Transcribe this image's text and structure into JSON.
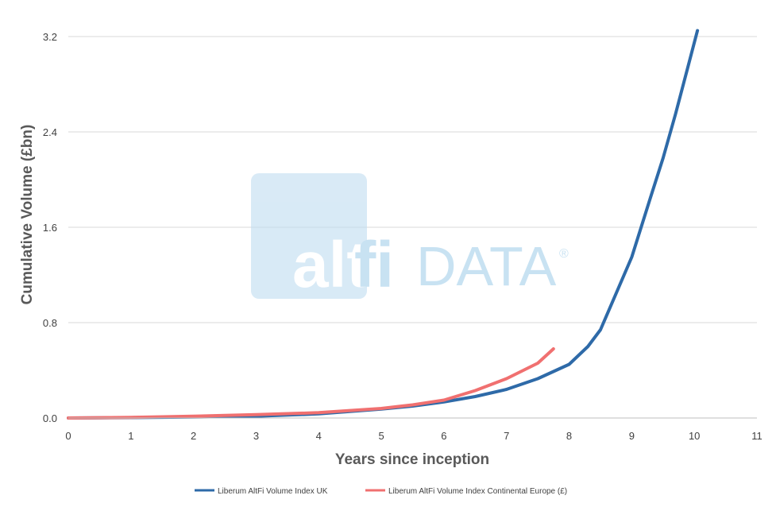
{
  "chart_data": {
    "type": "line",
    "title": "",
    "xlabel": "Years since inception",
    "ylabel": "Cumulative Volume (£bn)",
    "xlim": [
      0,
      11
    ],
    "ylim": [
      0,
      3.4
    ],
    "x_ticks": [
      "0",
      "1",
      "2",
      "3",
      "4",
      "5",
      "6",
      "7",
      "8",
      "9",
      "10",
      "11"
    ],
    "y_ticks": [
      "0.0",
      "0.8",
      "1.6",
      "2.4",
      "3.2"
    ],
    "grid": "horizontal",
    "legend_position": "bottom",
    "series": [
      {
        "name": "Liberum AltFi Volume Index UK",
        "color": "#2E6AA8",
        "points": [
          [
            0,
            0
          ],
          [
            1,
            0.003
          ],
          [
            2,
            0.008
          ],
          [
            3,
            0.015
          ],
          [
            4,
            0.035
          ],
          [
            5,
            0.075
          ],
          [
            5.5,
            0.1
          ],
          [
            6,
            0.135
          ],
          [
            6.5,
            0.18
          ],
          [
            7,
            0.24
          ],
          [
            7.5,
            0.33
          ],
          [
            8,
            0.45
          ],
          [
            8.3,
            0.6
          ],
          [
            8.5,
            0.74
          ],
          [
            9,
            1.35
          ],
          [
            9.3,
            1.85
          ],
          [
            9.5,
            2.18
          ],
          [
            9.7,
            2.55
          ],
          [
            9.9,
            2.95
          ],
          [
            10.05,
            3.25
          ]
        ]
      },
      {
        "name": "Liberum AltFi Volume Index Continental Europe (£)",
        "color": "#F07070",
        "points": [
          [
            0,
            0
          ],
          [
            1,
            0.005
          ],
          [
            2,
            0.015
          ],
          [
            3,
            0.028
          ],
          [
            4,
            0.045
          ],
          [
            5,
            0.08
          ],
          [
            5.5,
            0.11
          ],
          [
            6,
            0.15
          ],
          [
            6.5,
            0.23
          ],
          [
            7,
            0.33
          ],
          [
            7.5,
            0.46
          ],
          [
            7.75,
            0.58
          ]
        ]
      }
    ]
  },
  "watermark": {
    "brand": "alt",
    "brand2": "fi",
    "suffix": "DATA",
    "mark": "®"
  }
}
